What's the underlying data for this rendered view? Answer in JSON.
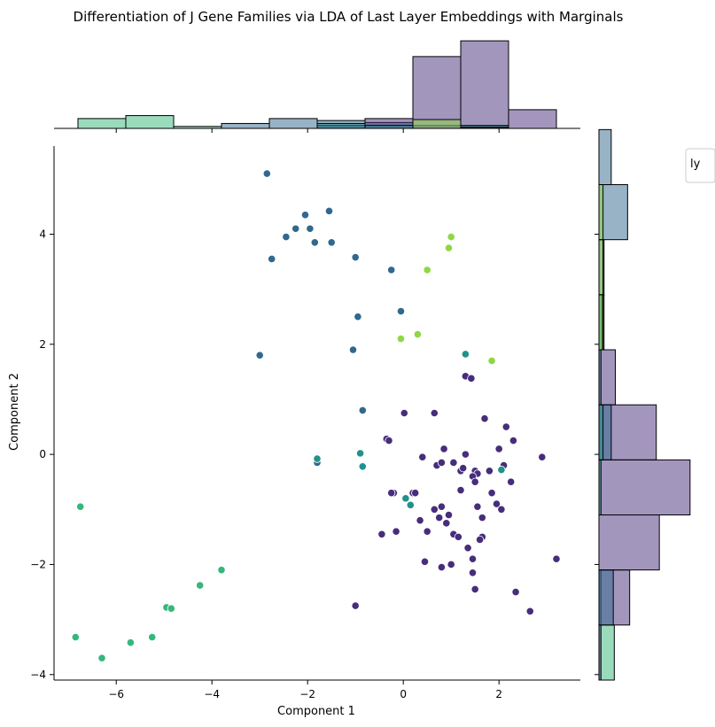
{
  "chart_data": {
    "type": "scatter",
    "title": "Differentiation of J Gene Families via LDA of Last Layer Embeddings with Marginals",
    "xlabel": "Component 1",
    "ylabel": "Component 2",
    "xlim": [
      -7.3,
      3.7
    ],
    "ylim": [
      -4.1,
      5.6
    ],
    "xticks": [
      -6,
      -4,
      -2,
      0,
      2
    ],
    "yticks": [
      -4,
      -2,
      0,
      2,
      4
    ],
    "legend_fragment": "ly",
    "groups": [
      {
        "color": "#472d7b",
        "points": [
          [
            0.4,
            -0.05
          ],
          [
            0.65,
            0.75
          ],
          [
            0.02,
            0.75
          ],
          [
            -0.35,
            0.28
          ],
          [
            -0.3,
            0.25
          ],
          [
            0.7,
            -0.2
          ],
          [
            0.8,
            -0.15
          ],
          [
            0.85,
            0.1
          ],
          [
            1.05,
            -0.15
          ],
          [
            1.2,
            -0.3
          ],
          [
            1.25,
            -0.25
          ],
          [
            1.3,
            0.0
          ],
          [
            1.5,
            -0.3
          ],
          [
            1.55,
            -0.35
          ],
          [
            1.45,
            -0.4
          ],
          [
            1.5,
            -0.5
          ],
          [
            1.7,
            0.65
          ],
          [
            1.8,
            -0.3
          ],
          [
            1.85,
            -0.7
          ],
          [
            1.95,
            -0.9
          ],
          [
            2.0,
            0.1
          ],
          [
            2.05,
            -1.0
          ],
          [
            2.1,
            -0.2
          ],
          [
            2.15,
            0.5
          ],
          [
            2.25,
            -0.5
          ],
          [
            2.3,
            0.25
          ],
          [
            2.9,
            -0.05
          ],
          [
            -0.2,
            -0.7
          ],
          [
            -0.25,
            -0.7
          ],
          [
            0.2,
            -0.7
          ],
          [
            0.25,
            -0.7
          ],
          [
            0.35,
            -1.2
          ],
          [
            0.5,
            -1.4
          ],
          [
            0.65,
            -1.0
          ],
          [
            0.75,
            -1.15
          ],
          [
            0.8,
            -0.95
          ],
          [
            0.9,
            -1.25
          ],
          [
            0.95,
            -1.1
          ],
          [
            1.05,
            -1.45
          ],
          [
            1.15,
            -1.5
          ],
          [
            1.2,
            -0.65
          ],
          [
            1.35,
            -1.7
          ],
          [
            1.45,
            -1.9
          ],
          [
            1.55,
            -0.95
          ],
          [
            1.65,
            -1.15
          ],
          [
            1.65,
            -1.5
          ],
          [
            1.6,
            -1.55
          ],
          [
            -0.45,
            -1.45
          ],
          [
            -0.15,
            -1.4
          ],
          [
            0.45,
            -1.95
          ],
          [
            0.8,
            -2.05
          ],
          [
            1.0,
            -2.0
          ],
          [
            1.45,
            -2.15
          ],
          [
            1.5,
            -2.45
          ],
          [
            2.35,
            -2.5
          ],
          [
            2.65,
            -2.85
          ],
          [
            3.2,
            -1.9
          ],
          [
            -1.0,
            -2.75
          ],
          [
            1.3,
            1.42
          ],
          [
            1.42,
            1.38
          ]
        ]
      },
      {
        "color": "#31688e",
        "points": [
          [
            -2.85,
            5.1
          ],
          [
            -1.55,
            4.42
          ],
          [
            -2.05,
            4.35
          ],
          [
            -2.25,
            4.1
          ],
          [
            -1.95,
            4.1
          ],
          [
            -2.45,
            3.95
          ],
          [
            -1.85,
            3.85
          ],
          [
            -1.5,
            3.85
          ],
          [
            -2.75,
            3.55
          ],
          [
            -1.0,
            3.58
          ],
          [
            -0.25,
            3.35
          ],
          [
            -0.95,
            2.5
          ],
          [
            -0.05,
            2.6
          ],
          [
            -1.05,
            1.9
          ],
          [
            -3.0,
            1.8
          ],
          [
            -0.85,
            0.8
          ],
          [
            -1.8,
            -0.15
          ]
        ]
      },
      {
        "color": "#21918c",
        "points": [
          [
            1.3,
            1.82
          ],
          [
            -0.9,
            0.02
          ],
          [
            -0.85,
            -0.22
          ],
          [
            -1.8,
            -0.08
          ],
          [
            0.05,
            -0.8
          ],
          [
            0.15,
            -0.92
          ],
          [
            2.05,
            -0.28
          ]
        ]
      },
      {
        "color": "#35b779",
        "points": [
          [
            -6.75,
            -0.95
          ],
          [
            -3.8,
            -2.1
          ],
          [
            -4.25,
            -2.38
          ],
          [
            -4.95,
            -2.78
          ],
          [
            -4.85,
            -2.8
          ],
          [
            -5.25,
            -3.32
          ],
          [
            -5.7,
            -3.42
          ],
          [
            -6.85,
            -3.32
          ],
          [
            -6.3,
            -3.7
          ]
        ]
      },
      {
        "color": "#8fd744",
        "points": [
          [
            1.0,
            3.95
          ],
          [
            0.95,
            3.75
          ],
          [
            0.5,
            3.35
          ],
          [
            0.3,
            2.18
          ],
          [
            -0.05,
            2.1
          ],
          [
            1.85,
            1.7
          ]
        ]
      }
    ],
    "top_marginal": {
      "bin_edges": [
        -6.8,
        -5.8,
        -4.8,
        -3.8,
        -2.8,
        -1.8,
        -0.8,
        0.2,
        1.2,
        2.2,
        3.2
      ],
      "stacks": [
        {
          "color": "#35b779",
          "counts": [
            1,
            1.3,
            0.2,
            0,
            0,
            0,
            0,
            0,
            0,
            0
          ]
        },
        {
          "color": "#31688e",
          "counts": [
            0,
            0,
            0,
            0.5,
            1,
            0.8,
            0.6,
            0.3,
            0.15,
            0
          ]
        },
        {
          "color": "#472d7b",
          "counts": [
            0,
            0,
            0,
            0,
            0,
            0.3,
            1.0,
            7.3,
            8.9,
            1.9
          ]
        },
        {
          "color": "#21918c",
          "counts": [
            0,
            0,
            0,
            0,
            0,
            0.5,
            0.3,
            0,
            0.3,
            0
          ]
        },
        {
          "color": "#8fd744",
          "counts": [
            0,
            0,
            0,
            0,
            0,
            0,
            0,
            0.9,
            0.1,
            0
          ]
        }
      ]
    },
    "right_marginal": {
      "bin_edges": [
        -4.1,
        -3.1,
        -2.1,
        -1.1,
        -0.1,
        0.9,
        1.9,
        2.9,
        3.9,
        4.9,
        5.9
      ],
      "stacks": [
        {
          "color": "#35b779",
          "counts": [
            1.5,
            0.2,
            0,
            0,
            0,
            0,
            0,
            0,
            0,
            0
          ]
        },
        {
          "color": "#472d7b",
          "counts": [
            0.2,
            3,
            5.9,
            8.9,
            5.6,
            1.6,
            0,
            0,
            0,
            0
          ]
        },
        {
          "color": "#31688e",
          "counts": [
            0,
            1.4,
            0,
            0,
            1.2,
            0.2,
            0.5,
            0.5,
            2.8,
            1.2
          ]
        },
        {
          "color": "#21918c",
          "counts": [
            0,
            0,
            0,
            0.2,
            0.4,
            0,
            0.3,
            0,
            0,
            0
          ]
        },
        {
          "color": "#8fd744",
          "counts": [
            0,
            0,
            0,
            0,
            0,
            0,
            0.4,
            0.4,
            0.4,
            0
          ]
        }
      ]
    }
  }
}
